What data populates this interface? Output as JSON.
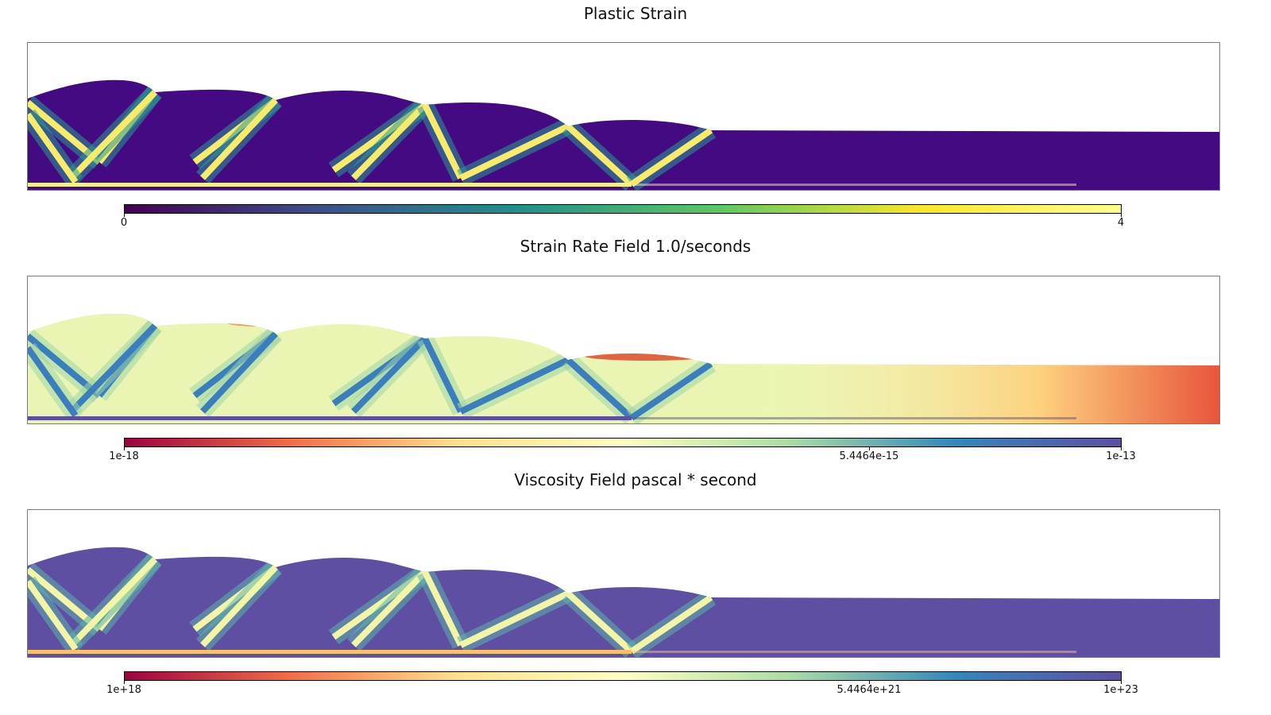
{
  "chart_data": [
    {
      "type": "heatmap",
      "title": "Plastic Strain",
      "colormap": "viridis",
      "color_range": [
        0,
        4
      ],
      "colorbar_ticks": [
        "0",
        "4"
      ],
      "colorbar_stops": [
        "#440154",
        "#3b528b",
        "#21918c",
        "#5ec962",
        "#fde725",
        "#ffff8c"
      ]
    },
    {
      "type": "heatmap",
      "title": "Strain Rate Field 1.0/seconds",
      "colormap": "spectral",
      "scale": "log",
      "color_range": [
        1e-18,
        1e-13
      ],
      "colorbar_ticks": [
        "1e-18",
        "5.4464e-15",
        "1e-13"
      ],
      "colorbar_stops": [
        "#9e0142",
        "#f46d43",
        "#fee08b",
        "#ffffbf",
        "#abdda4",
        "#3288bd",
        "#5e4fa2"
      ]
    },
    {
      "type": "heatmap",
      "title": "Viscosity Field pascal * second",
      "colormap": "spectral",
      "scale": "log",
      "color_range": [
        1e+18,
        1e+23
      ],
      "colorbar_ticks": [
        "1e+18",
        "5.4464e+21",
        "1e+23"
      ],
      "colorbar_stops": [
        "#9e0142",
        "#f46d43",
        "#fee08b",
        "#ffffbf",
        "#abdda4",
        "#3288bd",
        "#5e4fa2"
      ]
    }
  ]
}
